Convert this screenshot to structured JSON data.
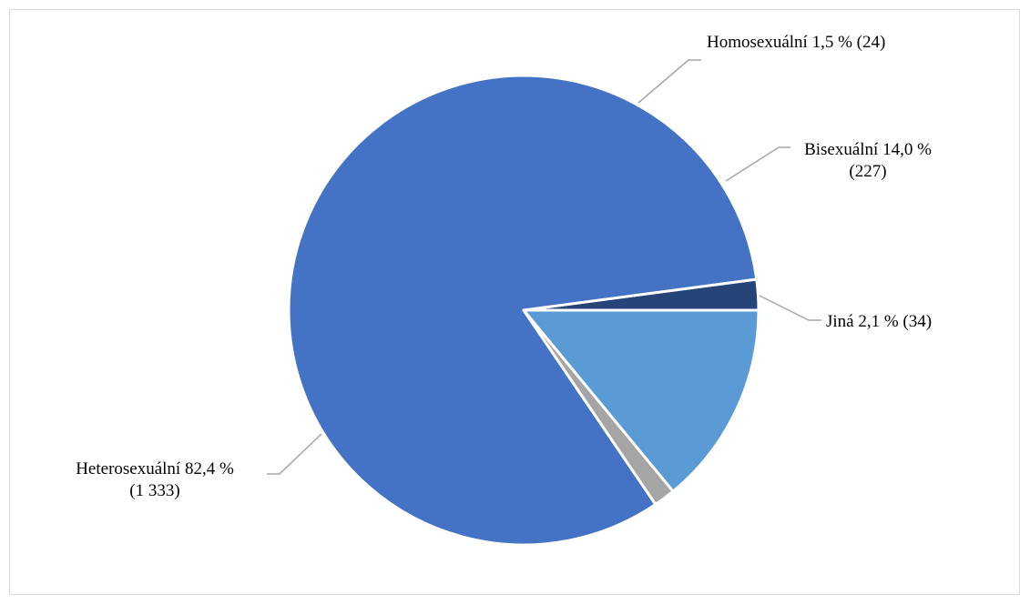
{
  "chart_data": {
    "type": "pie",
    "title": "",
    "slices": [
      {
        "name": "Jiná",
        "percent_label": "2,1 %",
        "count_label": "(34)",
        "value": 34,
        "color": "#264478"
      },
      {
        "name": "Heterosexuální",
        "percent_label": "82,4 %",
        "count_label": "(1 333)",
        "value": 1333,
        "color": "#4472c4"
      },
      {
        "name": "Homosexuální",
        "percent_label": "1,5 %",
        "count_label": "(24)",
        "value": 24,
        "color": "#a5a5a5"
      },
      {
        "name": "Bisexuální",
        "percent_label": "14,0 %",
        "count_label": "(227)",
        "value": 227,
        "color": "#5b9bd5"
      }
    ],
    "legend": "none",
    "labels": {
      "jina": {
        "line1": "Jiná 2,1 % (34)"
      },
      "hetero": {
        "line1": "Heterosexuální 82,4 %",
        "line2": "(1 333)"
      },
      "homo": {
        "line1": "Homosexuální 1,5 % (24)"
      },
      "bi": {
        "line1": "Bisexuální 14,0 %",
        "line2": "(227)"
      }
    }
  }
}
